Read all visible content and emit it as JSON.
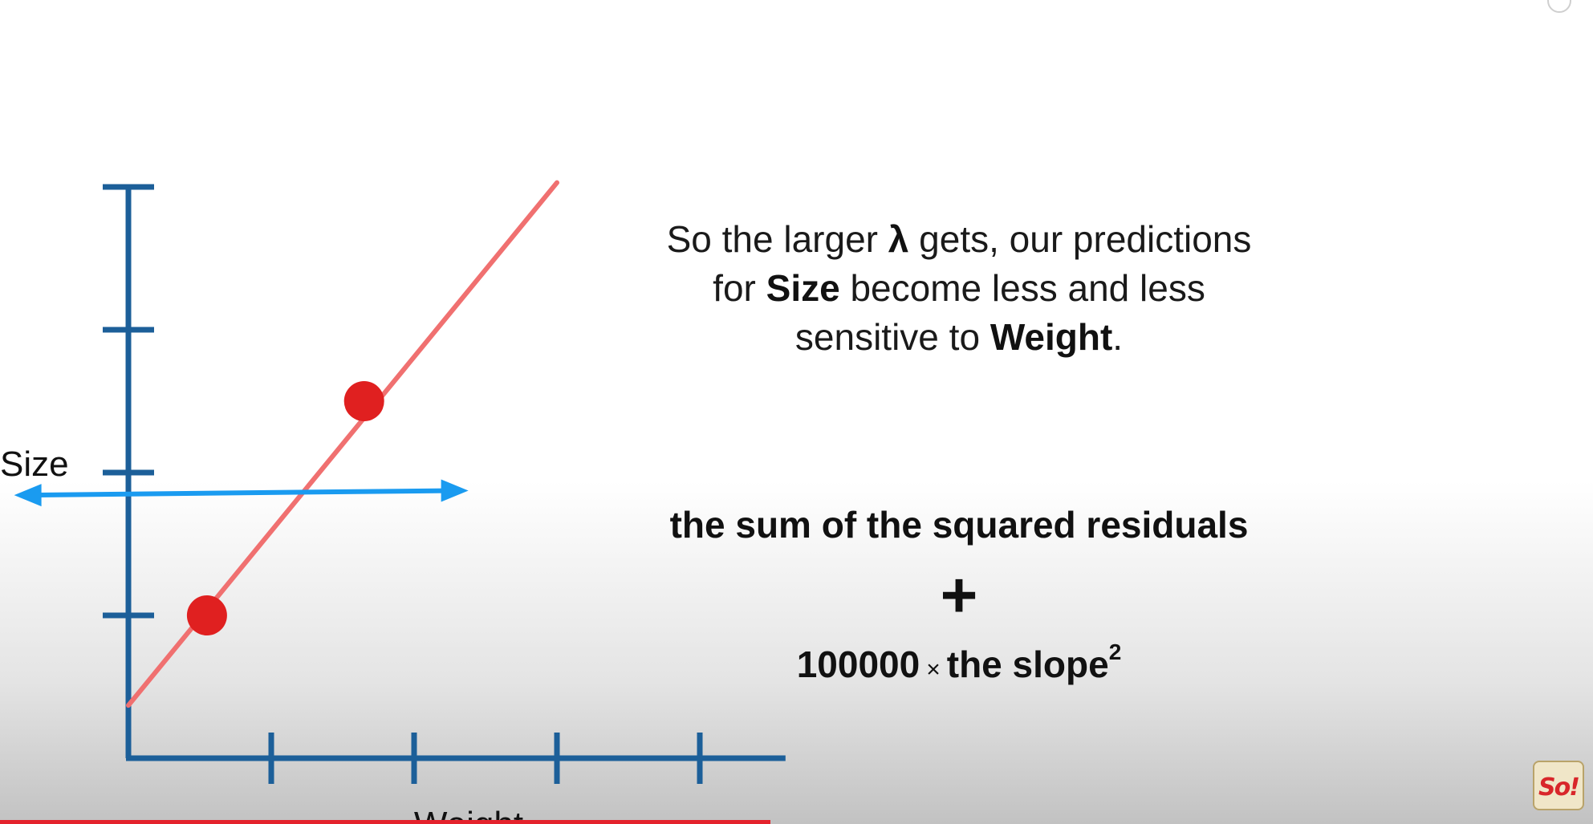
{
  "chart_data": {
    "type": "scatter",
    "xlabel": "Weight",
    "ylabel": "Size",
    "xlim": [
      0,
      4.6
    ],
    "ylim": [
      0,
      4
    ],
    "x_ticks": [
      1,
      2,
      3,
      4
    ],
    "y_ticks": [
      1,
      2,
      3,
      4
    ],
    "points": [
      {
        "x": 0.55,
        "y": 1.0
      },
      {
        "x": 1.65,
        "y": 2.5
      }
    ],
    "lines": [
      {
        "name": "",
        "color": "#f07070",
        "intercept": 0.37,
        "slope": 1.22
      },
      {
        "name": "",
        "color": "#1a9bf0",
        "intercept": 1.85,
        "slope": 0.01
      }
    ],
    "axis_color": "#1c5f99",
    "point_color": "#e02020"
  },
  "annotation": {
    "line1_a": "So the larger ",
    "lambda": "λ",
    "line1_b": " gets, our predictions",
    "line2_a": "for ",
    "size": "Size",
    "line2_b": " become less and less",
    "line3_a": "sensitive to ",
    "weight": "Weight",
    "line3_b": "."
  },
  "formula": {
    "sum_text": "the sum of the squared residuals",
    "plus": "+",
    "lambda_value": "100000",
    "times": "×",
    "slope_text": "the slope",
    "exponent": "2"
  },
  "logo": {
    "text": "So!"
  }
}
